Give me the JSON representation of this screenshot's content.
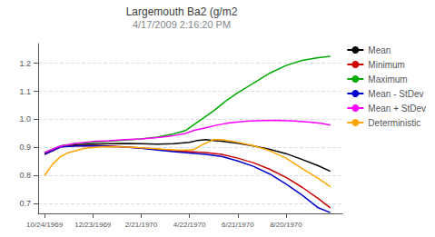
{
  "chart_data": {
    "type": "line",
    "title": "Largemouth Ba2 (g/m2",
    "subtitle": "4/17/2009 2:16:20 PM",
    "xlim": [
      -8,
      370
    ],
    "xticks": [
      {
        "value": 0,
        "label": "10/24/1969"
      },
      {
        "value": 60,
        "label": "12/23/1969"
      },
      {
        "value": 120,
        "label": "2/21/1970"
      },
      {
        "value": 180,
        "label": "4/22/1970"
      },
      {
        "value": 240,
        "label": "6/21/1970"
      },
      {
        "value": 300,
        "label": "8/20/1970"
      }
    ],
    "ylim": [
      0.665,
      1.27
    ],
    "yticks": [
      0.7,
      0.8,
      0.9,
      {
        "value": 1.0,
        "label": "1.0"
      },
      1.1,
      1.2
    ],
    "grid": true,
    "legend": "right",
    "series": [
      {
        "name": "Mean",
        "color": "#000000",
        "x": [
          0,
          20,
          40,
          60,
          80,
          100,
          120,
          140,
          160,
          180,
          190,
          200,
          210,
          220,
          240,
          260,
          280,
          300,
          320,
          340,
          355
        ],
        "values": [
          0.88,
          0.905,
          0.91,
          0.912,
          0.913,
          0.914,
          0.913,
          0.912,
          0.913,
          0.918,
          0.925,
          0.928,
          0.925,
          0.922,
          0.915,
          0.905,
          0.893,
          0.878,
          0.857,
          0.835,
          0.815
        ]
      },
      {
        "name": "Minimum",
        "color": "#CC0000",
        "x": [
          0,
          20,
          40,
          60,
          80,
          100,
          120,
          140,
          160,
          180,
          200,
          220,
          240,
          260,
          280,
          300,
          320,
          340,
          355
        ],
        "values": [
          0.875,
          0.902,
          0.906,
          0.907,
          0.905,
          0.902,
          0.898,
          0.893,
          0.888,
          0.885,
          0.882,
          0.875,
          0.862,
          0.845,
          0.822,
          0.793,
          0.758,
          0.718,
          0.685
        ]
      },
      {
        "name": "Maximum",
        "color": "#00AA00",
        "x": [
          0,
          20,
          40,
          60,
          80,
          100,
          120,
          140,
          160,
          175,
          185,
          195,
          210,
          225,
          240,
          260,
          280,
          300,
          320,
          340,
          355
        ],
        "values": [
          0.882,
          0.905,
          0.914,
          0.918,
          0.922,
          0.926,
          0.93,
          0.937,
          0.948,
          0.96,
          0.98,
          1.0,
          1.03,
          1.065,
          1.095,
          1.13,
          1.165,
          1.192,
          1.21,
          1.22,
          1.225
        ]
      },
      {
        "name": "Mean - StDev",
        "color": "#0000CC",
        "x": [
          0,
          20,
          40,
          60,
          80,
          100,
          120,
          140,
          160,
          180,
          200,
          220,
          240,
          260,
          280,
          300,
          320,
          340,
          355
        ],
        "values": [
          0.875,
          0.902,
          0.905,
          0.906,
          0.904,
          0.901,
          0.897,
          0.891,
          0.885,
          0.88,
          0.875,
          0.868,
          0.852,
          0.832,
          0.805,
          0.77,
          0.73,
          0.685,
          0.668
        ]
      },
      {
        "name": "Mean + StDev",
        "color": "#FF00FF",
        "x": [
          0,
          20,
          40,
          60,
          80,
          100,
          120,
          140,
          160,
          175,
          185,
          200,
          215,
          230,
          250,
          270,
          290,
          310,
          330,
          345,
          355
        ],
        "values": [
          0.882,
          0.905,
          0.915,
          0.921,
          0.924,
          0.928,
          0.93,
          0.935,
          0.942,
          0.95,
          0.96,
          0.97,
          0.98,
          0.988,
          0.993,
          0.996,
          0.997,
          0.994,
          0.99,
          0.985,
          0.98
        ]
      },
      {
        "name": "Deterministic",
        "color": "#FFA500",
        "x": [
          0,
          10,
          20,
          30,
          50,
          70,
          90,
          110,
          130,
          150,
          170,
          185,
          195,
          210,
          220,
          240,
          260,
          280,
          300,
          320,
          340,
          355
        ],
        "values": [
          0.8,
          0.84,
          0.868,
          0.882,
          0.897,
          0.902,
          0.902,
          0.9,
          0.897,
          0.893,
          0.89,
          0.892,
          0.908,
          0.928,
          0.928,
          0.918,
          0.906,
          0.888,
          0.862,
          0.825,
          0.79,
          0.76
        ]
      }
    ]
  }
}
